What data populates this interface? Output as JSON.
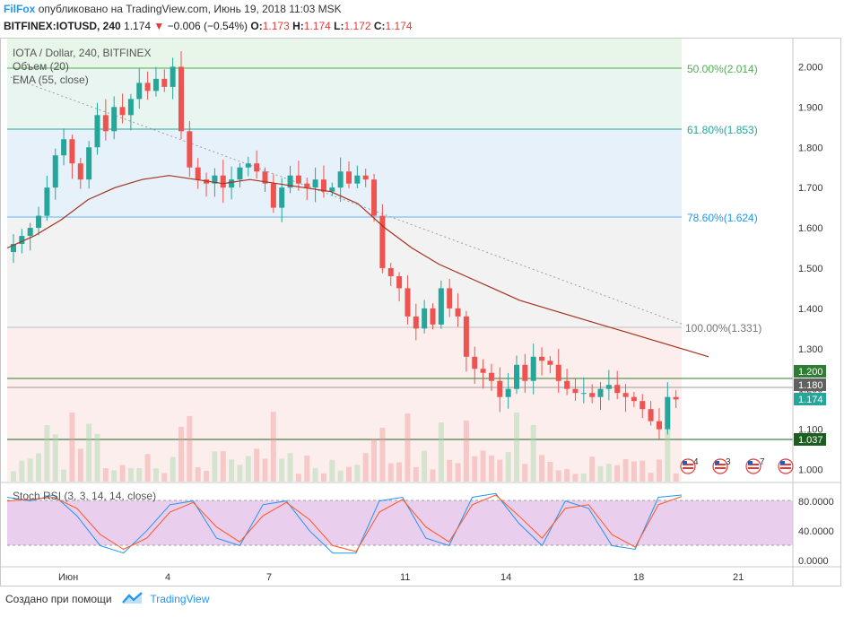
{
  "header": {
    "brand": "FilFox",
    "published_text": "опубликовано на TradingView.com, Июнь 19, 2018 11:03 MSK",
    "symbol": "BITFINEX:IOTUSD, 240",
    "last": "1.174",
    "change_arrow": "▼",
    "change": "−0.006 (−0.54%)",
    "o_label": "O:",
    "o_value": "1.173",
    "h_label": "H:",
    "h_value": "1.174",
    "l_label": "L:",
    "l_value": "1.172",
    "c_label": "C:",
    "c_value": "1.174"
  },
  "main_pane": {
    "title": "IOTA / Dollar, 240, BITFINEX",
    "volume_label": "Объем (20)",
    "ema_label": "EMA (55, close)"
  },
  "fib_levels": [
    {
      "label": "50.00%(2.014)",
      "value": 2.014,
      "color": "#4caf50"
    },
    {
      "label": "61.80%(1.853)",
      "value": 1.853,
      "color": "#26a69a"
    },
    {
      "label": "78.60%(1.624)",
      "value": 1.624,
      "color": "#2196f3"
    },
    {
      "label": "100.00%(1.331)",
      "value": 1.331,
      "color": "#9e9e9e"
    }
  ],
  "horizontal_levels": [
    {
      "label": "1.200",
      "value": 1.2,
      "color": "#2e7d32"
    },
    {
      "label": "1.037",
      "value": 1.037,
      "color": "#1b5e20"
    }
  ],
  "price_tags": [
    {
      "label": "1.180",
      "value": 1.18,
      "color": "#616161"
    },
    {
      "label": "1.174",
      "value": 1.174,
      "color": "#26a69a"
    }
  ],
  "price_axis": [
    "2.000",
    "1.900",
    "1.800",
    "1.700",
    "1.600",
    "1.500",
    "1.400",
    "1.300",
    "1.200",
    "1.100",
    "1.000"
  ],
  "rsi_pane": {
    "label": "Stoch RSI (3, 3, 14, 14, close)",
    "axis": [
      "80.0000",
      "40.0000",
      "0.0000"
    ]
  },
  "time_axis": [
    "Июн",
    "4",
    "7",
    "11",
    "14",
    "18",
    "21"
  ],
  "events": [
    "4",
    "3",
    "7",
    ""
  ],
  "footer": {
    "created_with": "Создано при помощи",
    "tradingview": "TradingView"
  },
  "colors": {
    "up": "#26a69a",
    "down": "#ef5350",
    "ema": "#a5321e",
    "stoch_k": "#2196f3",
    "stoch_d": "#ff5722",
    "rsi_band": "#e1bee7"
  },
  "chart_data": {
    "type": "candlestick",
    "closes": [
      1.56,
      1.58,
      1.6,
      1.63,
      1.7,
      1.78,
      1.82,
      1.76,
      1.72,
      1.8,
      1.88,
      1.84,
      1.9,
      1.88,
      1.92,
      1.96,
      1.94,
      1.97,
      1.95,
      2.0,
      1.84,
      1.75,
      1.72,
      1.71,
      1.73,
      1.7,
      1.72,
      1.75,
      1.76,
      1.74,
      1.71,
      1.65,
      1.7,
      1.73,
      1.71,
      1.7,
      1.72,
      1.69,
      1.7,
      1.74,
      1.71,
      1.73,
      1.72,
      1.63,
      1.5,
      1.48,
      1.45,
      1.38,
      1.35,
      1.4,
      1.36,
      1.45,
      1.4,
      1.38,
      1.28,
      1.25,
      1.24,
      1.22,
      1.18,
      1.2,
      1.26,
      1.22,
      1.28,
      1.27,
      1.26,
      1.22,
      1.2,
      1.19,
      1.19,
      1.18,
      1.2,
      1.21,
      1.19,
      1.18,
      1.17,
      1.15,
      1.12,
      1.1,
      1.18,
      1.174
    ],
    "ema": [
      1.55,
      1.58,
      1.62,
      1.67,
      1.7,
      1.72,
      1.73,
      1.72,
      1.71,
      1.72,
      1.71,
      1.7,
      1.69,
      1.66,
      1.6,
      1.55,
      1.51,
      1.48,
      1.45,
      1.42,
      1.4,
      1.38,
      1.36,
      1.34,
      1.32,
      1.3,
      1.28
    ],
    "stoch_k": [
      85,
      80,
      88,
      60,
      20,
      10,
      40,
      75,
      80,
      30,
      20,
      75,
      80,
      40,
      10,
      10,
      80,
      85,
      30,
      20,
      85,
      90,
      50,
      20,
      80,
      70,
      20,
      15,
      85,
      88
    ],
    "stoch_d": [
      80,
      82,
      85,
      70,
      35,
      15,
      30,
      65,
      78,
      45,
      25,
      60,
      78,
      55,
      20,
      12,
      65,
      82,
      45,
      25,
      75,
      88,
      60,
      30,
      70,
      75,
      35,
      18,
      75,
      86
    ],
    "ylim": [
      0.97,
      2.07
    ]
  }
}
